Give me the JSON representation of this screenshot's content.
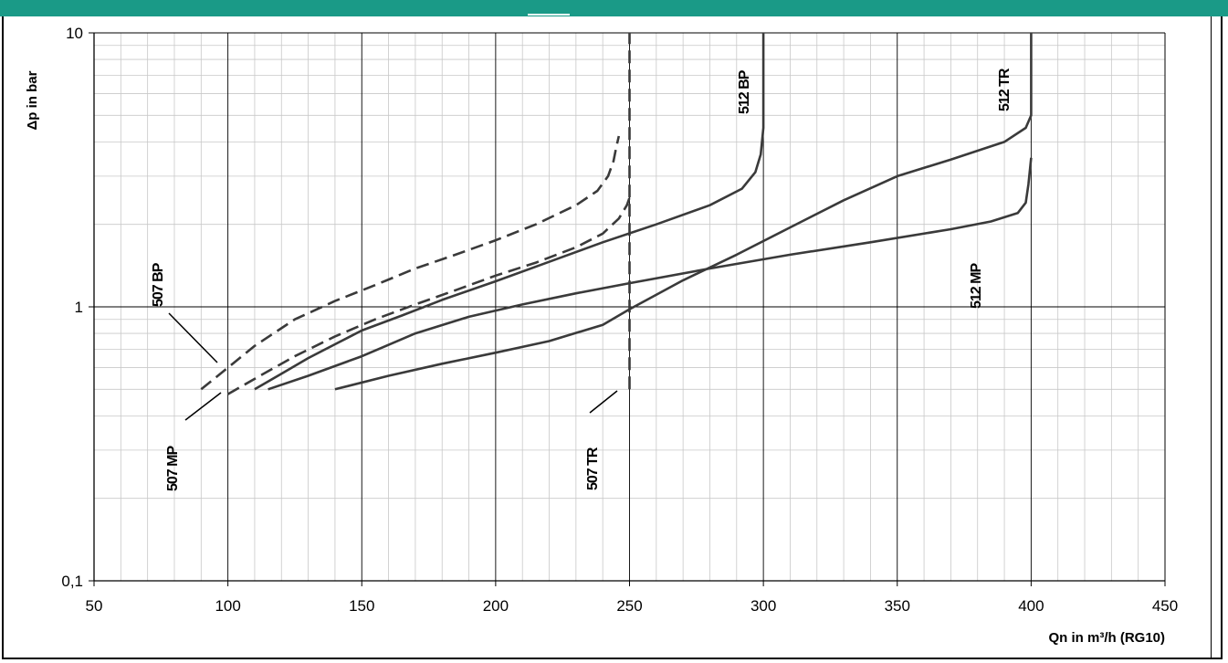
{
  "chart_data": {
    "type": "line",
    "xlabel": "Qn in m³/h (RG10)",
    "ylabel": "Δp in bar",
    "xlim": [
      50,
      450
    ],
    "ylim": [
      0.1,
      10
    ],
    "y_scale": "log",
    "grid": true,
    "x_ticks": [
      "50",
      "100",
      "150",
      "200",
      "250",
      "300",
      "350",
      "400",
      "450"
    ],
    "y_ticks": [
      "0,1",
      "1",
      "10"
    ],
    "series": [
      {
        "name": "507 BP",
        "style": "dashed",
        "points": [
          [
            90,
            0.5
          ],
          [
            100,
            0.6
          ],
          [
            110,
            0.72
          ],
          [
            125,
            0.9
          ],
          [
            140,
            1.05
          ],
          [
            155,
            1.2
          ],
          [
            170,
            1.38
          ],
          [
            185,
            1.55
          ],
          [
            200,
            1.75
          ],
          [
            215,
            2.0
          ],
          [
            230,
            2.35
          ],
          [
            238,
            2.65
          ],
          [
            242,
            3.0
          ],
          [
            244,
            3.4
          ],
          [
            245,
            3.8
          ],
          [
            246,
            4.2
          ]
        ]
      },
      {
        "name": "507 MP",
        "style": "dashed",
        "points": [
          [
            100,
            0.48
          ],
          [
            112,
            0.56
          ],
          [
            125,
            0.66
          ],
          [
            140,
            0.78
          ],
          [
            155,
            0.9
          ],
          [
            170,
            1.02
          ],
          [
            185,
            1.15
          ],
          [
            200,
            1.3
          ],
          [
            215,
            1.45
          ],
          [
            230,
            1.65
          ],
          [
            240,
            1.85
          ],
          [
            246,
            2.1
          ],
          [
            249,
            2.35
          ],
          [
            250,
            2.5
          ]
        ]
      },
      {
        "name": "507 TR",
        "style": "dashed",
        "points": [
          [
            250,
            0.5
          ],
          [
            250,
            1
          ],
          [
            250,
            2
          ],
          [
            250,
            5
          ],
          [
            250,
            10
          ]
        ]
      },
      {
        "name": "512 BP",
        "style": "solid",
        "points": [
          [
            110,
            0.5
          ],
          [
            120,
            0.57
          ],
          [
            130,
            0.65
          ],
          [
            140,
            0.73
          ],
          [
            150,
            0.82
          ],
          [
            165,
            0.93
          ],
          [
            180,
            1.06
          ],
          [
            200,
            1.24
          ],
          [
            220,
            1.46
          ],
          [
            240,
            1.72
          ],
          [
            260,
            2.0
          ],
          [
            280,
            2.35
          ],
          [
            292,
            2.7
          ],
          [
            297,
            3.1
          ],
          [
            299,
            3.6
          ],
          [
            300,
            4.5
          ],
          [
            300,
            10
          ]
        ]
      },
      {
        "name": "512 MP",
        "style": "solid",
        "points": [
          [
            115,
            0.5
          ],
          [
            130,
            0.56
          ],
          [
            150,
            0.66
          ],
          [
            170,
            0.8
          ],
          [
            190,
            0.92
          ],
          [
            210,
            1.02
          ],
          [
            230,
            1.12
          ],
          [
            250,
            1.22
          ],
          [
            280,
            1.38
          ],
          [
            310,
            1.55
          ],
          [
            340,
            1.72
          ],
          [
            370,
            1.92
          ],
          [
            385,
            2.05
          ],
          [
            395,
            2.2
          ],
          [
            398,
            2.4
          ],
          [
            399,
            2.8
          ],
          [
            400,
            3.5
          ]
        ]
      },
      {
        "name": "512 TR",
        "style": "solid",
        "points": [
          [
            140,
            0.5
          ],
          [
            160,
            0.56
          ],
          [
            180,
            0.62
          ],
          [
            200,
            0.68
          ],
          [
            220,
            0.75
          ],
          [
            240,
            0.86
          ],
          [
            250,
            0.98
          ],
          [
            270,
            1.25
          ],
          [
            290,
            1.55
          ],
          [
            310,
            1.95
          ],
          [
            330,
            2.45
          ],
          [
            350,
            3.0
          ],
          [
            370,
            3.45
          ],
          [
            390,
            4.0
          ],
          [
            398,
            4.5
          ],
          [
            400,
            5.0
          ],
          [
            400,
            10
          ]
        ]
      }
    ]
  }
}
